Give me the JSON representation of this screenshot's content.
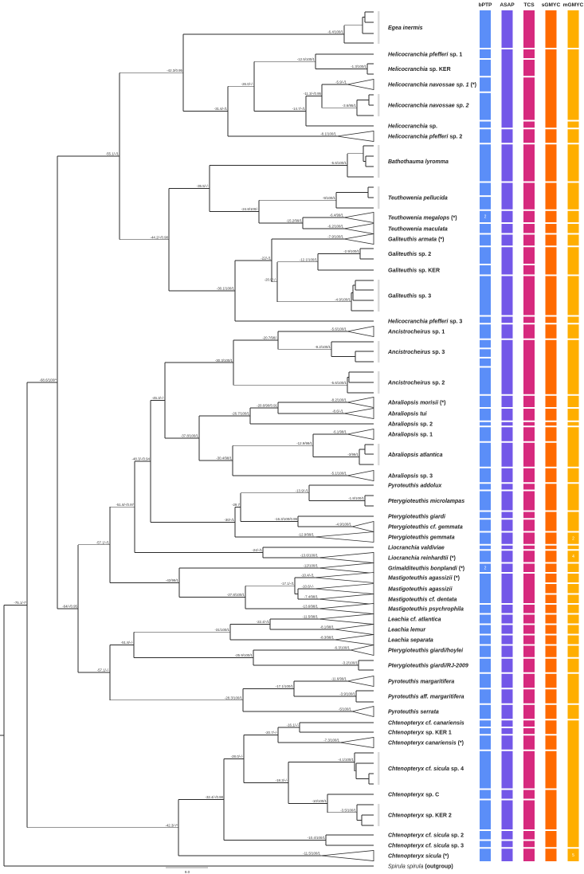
{
  "methods": [
    {
      "name": "bPTP",
      "color": "#5B8EF8"
    },
    {
      "name": "ASAP",
      "color": "#7357E8"
    },
    {
      "name": "TCS",
      "color": "#D62A7E"
    },
    {
      "name": "sGMYC",
      "color": "#FF6A00"
    },
    {
      "name": "mGMYC",
      "color": "#FFAE00"
    }
  ],
  "taxa": [
    {
      "italic": "Egea inermis",
      "plain": ""
    },
    {
      "italic": "Helicocranchia pfefferi",
      "plain": "sp. 1"
    },
    {
      "italic": "Helicocranchia",
      "plain": "sp. KER"
    },
    {
      "italic": "Helicocranchia navossae sp. 1",
      "plain": "(*)"
    },
    {
      "italic": "Helicocranchia navossae sp. 2",
      "plain": ""
    },
    {
      "italic": "Helicocranchia",
      "plain": "sp."
    },
    {
      "italic": "Helicocranchia pfefferi",
      "plain": "sp. 2"
    },
    {
      "italic": "Bathothauma lyromma",
      "plain": ""
    },
    {
      "italic": "Teuthowenia pellucida",
      "plain": ""
    },
    {
      "italic": "Teuthowenia megalops",
      "plain": "(*)"
    },
    {
      "italic": "Teuthowenia maculata",
      "plain": ""
    },
    {
      "italic": "Galiteuthis armata",
      "plain": "(*)"
    },
    {
      "italic": "Galiteuthis",
      "plain": "sp. 2"
    },
    {
      "italic": "Galiteuthis",
      "plain": "sp. KER"
    },
    {
      "italic": "Galiteuthis",
      "plain": "sp. 3"
    },
    {
      "italic": "Helicocranchia pfefferi",
      "plain": "sp. 3"
    },
    {
      "italic": "Ancistrocheirus",
      "plain": "sp. 1"
    },
    {
      "italic": "Ancistrocheirus",
      "plain": "sp. 3"
    },
    {
      "italic": "Ancistrocheirus",
      "plain": "sp. 2"
    },
    {
      "italic": "Abraliopsis morisii",
      "plain": "(*)"
    },
    {
      "italic": "Abraliopsis tui",
      "plain": ""
    },
    {
      "italic": "Abraliopsis",
      "plain": "sp. 2"
    },
    {
      "italic": "Abraliopsis",
      "plain": "sp. 1"
    },
    {
      "italic": "Abraliopsis atlantica",
      "plain": ""
    },
    {
      "italic": "Abraliopsis",
      "plain": "sp. 3"
    },
    {
      "italic": "Pyroteuthis addolux",
      "plain": ""
    },
    {
      "italic": "Pterygioteuthis microlampas",
      "plain": ""
    },
    {
      "italic": "Pterygioteuthis giardi",
      "plain": ""
    },
    {
      "italic": "Pterygioteuthis cf. gemmata",
      "plain": ""
    },
    {
      "italic": "Pterygioteuthis gemmata",
      "plain": ""
    },
    {
      "italic": "Liocranchia valdiviae",
      "plain": ""
    },
    {
      "italic": "Liocranchia reinhardtii",
      "plain": "(*)"
    },
    {
      "italic": "Grimalditeuthis bonplandi",
      "plain": "(*)"
    },
    {
      "italic": "Mastigoteuthis agassizii",
      "plain": "(*)"
    },
    {
      "italic": "Mastigoteuthis agassizii",
      "plain": ""
    },
    {
      "italic": "Mastigoteuthis cf. dentata",
      "plain": ""
    },
    {
      "italic": "Mastigoteuthis psychrophila",
      "plain": ""
    },
    {
      "italic": "Leachia cf. atlantica",
      "plain": ""
    },
    {
      "italic": "Leachia lemur",
      "plain": ""
    },
    {
      "italic": "Leachia separata",
      "plain": ""
    },
    {
      "italic": "Pterygioteuthis giardi/hoylei",
      "plain": ""
    },
    {
      "italic": "Pterygioteuthis giardi/RJ-2009",
      "plain": ""
    },
    {
      "italic": "Pyroteuthis margaritifera",
      "plain": ""
    },
    {
      "italic": "Pyroteuthis aff. margaritifera",
      "plain": ""
    },
    {
      "italic": "Pyroteuthis serrata",
      "plain": ""
    },
    {
      "italic": "Chtenopteryx cf. canariensis",
      "plain": ""
    },
    {
      "italic": "Chtenopteryx",
      "plain": "sp. KER 1"
    },
    {
      "italic": "Chtenopteryx canariensis",
      "plain": "(*)"
    },
    {
      "italic": "Chtenopteryx cf. sicula",
      "plain": "sp. 4"
    },
    {
      "italic": "Chtenopteryx",
      "plain": "sp. C"
    },
    {
      "italic": "Chtenopteryx",
      "plain": "sp. KER 2"
    },
    {
      "italic": "Chtenopteryx cf. sicula",
      "plain": "sp. 2"
    },
    {
      "italic": "Chtenopteryx cf. sicula",
      "plain": "sp. 3"
    },
    {
      "italic": "Chtenopteryx sicula",
      "plain": "(*)"
    }
  ],
  "outgroup": {
    "italic": "Spirula spirula",
    "plain": "(outgroup)"
  },
  "delimitation_groups": {
    "bPTP": [
      [
        0,
        0
      ],
      [
        1,
        1
      ],
      [
        2,
        2
      ],
      [
        3,
        3
      ],
      [
        4,
        4
      ],
      [
        5,
        5
      ],
      [
        6,
        6
      ],
      [
        7,
        7
      ],
      [
        8,
        8,
        2
      ],
      [
        9,
        9,
        1,
        "2"
      ],
      [
        10,
        10
      ],
      [
        11,
        11
      ],
      [
        12,
        12
      ],
      [
        13,
        13
      ],
      [
        14,
        14
      ],
      [
        15,
        15
      ],
      [
        16,
        16
      ],
      [
        17,
        17,
        3
      ],
      [
        18,
        18
      ],
      [
        19,
        19
      ],
      [
        20,
        20
      ],
      [
        21,
        21
      ],
      [
        22,
        22
      ],
      [
        23,
        23
      ],
      [
        24,
        24
      ],
      [
        25,
        25
      ],
      [
        26,
        26
      ],
      [
        27,
        27
      ],
      [
        28,
        28
      ],
      [
        29,
        29
      ],
      [
        30,
        30
      ],
      [
        31,
        31
      ],
      [
        32,
        32,
        1,
        "2"
      ],
      [
        33,
        35
      ],
      [
        36,
        36
      ],
      [
        37,
        37
      ],
      [
        38,
        38
      ],
      [
        39,
        39
      ],
      [
        40,
        40
      ],
      [
        41,
        41
      ],
      [
        42,
        42
      ],
      [
        43,
        43
      ],
      [
        44,
        44
      ],
      [
        45,
        45
      ],
      [
        46,
        46
      ],
      [
        47,
        47
      ],
      [
        48,
        48
      ],
      [
        49,
        49
      ],
      [
        50,
        50
      ],
      [
        51,
        51
      ],
      [
        52,
        52
      ],
      [
        53,
        53
      ]
    ],
    "ASAP": [
      [
        0,
        0
      ],
      [
        1,
        5
      ],
      [
        6,
        6
      ],
      [
        7,
        7
      ],
      [
        8,
        8
      ],
      [
        9,
        9
      ],
      [
        10,
        10
      ],
      [
        11,
        11
      ],
      [
        12,
        13
      ],
      [
        14,
        14
      ],
      [
        15,
        15
      ],
      [
        16,
        16
      ],
      [
        17,
        18
      ],
      [
        19,
        19
      ],
      [
        20,
        20
      ],
      [
        21,
        21
      ],
      [
        22,
        22
      ],
      [
        23,
        23
      ],
      [
        24,
        24
      ],
      [
        25,
        25
      ],
      [
        26,
        26
      ],
      [
        27,
        27
      ],
      [
        28,
        28
      ],
      [
        29,
        29
      ],
      [
        30,
        30
      ],
      [
        31,
        31
      ],
      [
        32,
        32
      ],
      [
        33,
        35
      ],
      [
        36,
        36
      ],
      [
        37,
        37
      ],
      [
        38,
        38
      ],
      [
        39,
        39
      ],
      [
        40,
        40
      ],
      [
        41,
        41
      ],
      [
        42,
        42
      ],
      [
        43,
        43
      ],
      [
        44,
        44
      ],
      [
        45,
        45
      ],
      [
        46,
        46
      ],
      [
        47,
        47
      ],
      [
        48,
        48
      ],
      [
        49,
        49
      ],
      [
        50,
        50
      ],
      [
        51,
        51
      ],
      [
        52,
        52
      ],
      [
        53,
        53
      ]
    ],
    "TCS": [
      [
        0,
        0
      ],
      [
        1,
        1
      ],
      [
        2,
        2
      ],
      [
        3,
        4
      ],
      [
        5,
        5
      ],
      [
        6,
        6
      ],
      [
        7,
        7
      ],
      [
        8,
        8
      ],
      [
        9,
        9
      ],
      [
        10,
        10
      ],
      [
        11,
        11
      ],
      [
        12,
        12
      ],
      [
        13,
        13
      ],
      [
        14,
        14
      ],
      [
        15,
        15
      ],
      [
        16,
        16
      ],
      [
        17,
        18
      ],
      [
        19,
        19
      ],
      [
        20,
        20
      ],
      [
        21,
        21
      ],
      [
        22,
        22
      ],
      [
        23,
        23
      ],
      [
        24,
        24
      ],
      [
        25,
        25
      ],
      [
        26,
        26
      ],
      [
        27,
        27
      ],
      [
        28,
        28
      ],
      [
        29,
        29
      ],
      [
        30,
        30
      ],
      [
        31,
        31
      ],
      [
        32,
        32
      ],
      [
        33,
        35
      ],
      [
        36,
        36
      ],
      [
        37,
        37
      ],
      [
        38,
        38
      ],
      [
        39,
        39
      ],
      [
        40,
        40
      ],
      [
        41,
        41
      ],
      [
        42,
        42
      ],
      [
        43,
        43
      ],
      [
        44,
        44
      ],
      [
        45,
        45
      ],
      [
        46,
        46
      ],
      [
        47,
        47
      ],
      [
        48,
        48
      ],
      [
        49,
        49
      ],
      [
        50,
        50
      ],
      [
        51,
        51
      ],
      [
        52,
        52
      ],
      [
        53,
        53
      ]
    ],
    "sGMYC": [
      [
        0,
        0
      ],
      [
        1,
        5
      ],
      [
        6,
        6
      ],
      [
        7,
        7
      ],
      [
        8,
        8
      ],
      [
        9,
        9
      ],
      [
        10,
        10
      ],
      [
        11,
        11
      ],
      [
        12,
        13
      ],
      [
        14,
        14
      ],
      [
        15,
        15
      ],
      [
        16,
        16
      ],
      [
        17,
        18
      ],
      [
        19,
        19
      ],
      [
        20,
        20
      ],
      [
        21,
        21
      ],
      [
        22,
        22
      ],
      [
        23,
        23
      ],
      [
        24,
        24
      ],
      [
        25,
        26
      ],
      [
        27,
        28
      ],
      [
        29,
        29
      ],
      [
        30,
        30
      ],
      [
        31,
        31
      ],
      [
        32,
        32
      ],
      [
        33,
        33
      ],
      [
        34,
        34
      ],
      [
        35,
        35
      ],
      [
        36,
        36
      ],
      [
        37,
        37
      ],
      [
        38,
        38
      ],
      [
        39,
        39
      ],
      [
        40,
        40
      ],
      [
        41,
        41
      ],
      [
        42,
        42
      ],
      [
        43,
        43
      ],
      [
        44,
        44
      ],
      [
        45,
        46
      ],
      [
        47,
        47
      ],
      [
        48,
        48
      ],
      [
        49,
        50
      ],
      [
        51,
        52
      ],
      [
        53,
        53
      ]
    ],
    "mGMYC": [
      [
        0,
        0
      ],
      [
        1,
        4
      ],
      [
        5,
        5
      ],
      [
        6,
        6
      ],
      [
        7,
        7
      ],
      [
        8,
        8
      ],
      [
        9,
        9
      ],
      [
        10,
        10
      ],
      [
        11,
        11
      ],
      [
        12,
        13
      ],
      [
        14,
        14
      ],
      [
        15,
        15
      ],
      [
        16,
        16
      ],
      [
        17,
        18
      ],
      [
        19,
        19
      ],
      [
        20,
        20
      ],
      [
        21,
        21
      ],
      [
        22,
        23
      ],
      [
        24,
        24
      ],
      [
        25,
        26
      ],
      [
        27,
        28
      ],
      [
        29,
        29,
        1,
        "2"
      ],
      [
        30,
        30
      ],
      [
        31,
        31,
        1,
        "4"
      ],
      [
        32,
        32
      ],
      [
        33,
        33
      ],
      [
        34,
        34
      ],
      [
        35,
        35
      ],
      [
        36,
        36
      ],
      [
        37,
        37
      ],
      [
        38,
        38
      ],
      [
        39,
        39
      ],
      [
        40,
        40
      ],
      [
        41,
        41
      ],
      [
        42,
        43
      ],
      [
        44,
        44
      ],
      [
        45,
        52
      ],
      [
        53,
        53,
        1,
        "5"
      ]
    ]
  },
  "tree": {
    "node_labels": {
      "n1": "-75.1/-/*",
      "n2": "-68.6/100/*",
      "n3": "-55.1/-/1",
      "n4": "-42.3/0.95",
      "egea": "-6.4/100/1",
      "n5": "-31.6/-/1",
      "n5b": "-8.1/100/1",
      "n6": "-26.0/-/-",
      "n7": "-12.5/100/1",
      "n8": "-1.3/100/1",
      "n9": "-14.7/-/1",
      "n10": "-11.3/-/0.95",
      "n10b": "-5.9/-/1",
      "n11": "-3.6/95/1",
      "n12": "-44.2/-/0.98",
      "n13": "-35.5/-/-",
      "n14": "-5.6/100/1",
      "n15": "-24.8/100/-",
      "n16": "-9/100/1",
      "n17": "-15.2/99/1",
      "n18": "-6.4/99/1",
      "n19": "-6.2/100/1",
      "n20": "-30.1/100/1",
      "n21": "-22/-/1",
      "n22": "-7.9/100/1",
      "n23": "-20.9/-/-",
      "n24": "-12.1/100/1",
      "n25": "-2.9/100/1",
      "n26": "-4.9/100/1",
      "n27": "-64/-/0.95",
      "n28": "-57.1/-/1",
      "n29": "-51.8/-/0.97",
      "n30": "-48.3/-/0.94",
      "n31": "-45.3/-/-",
      "n32": "-30.3/100/1",
      "n33": "-20.7/98/-",
      "n34": "-5.6/100/1",
      "n35": "-9.2/100/1",
      "n36": "-5.6/100/1",
      "n37": "-37.8/100/1",
      "n38": "-26.7/100/1",
      "n39": "-20.6/90/0.91",
      "n40": "-8.2/100/1",
      "n41": "-8.6/-/1",
      "n42": "-30.4/98/1",
      "n43": "-12.9/99/1",
      "n44": "-6.1/98/1",
      "n45": "-3/99/1",
      "n46": "-5.1/100/1",
      "n47": "-30/-/1",
      "n48": "-29.7",
      "n49": "-13.9/-/1",
      "n50": "-1.8/100/1",
      "n51": "-16.3/100/0.99",
      "n52": "-4.9/100/1",
      "n53": "-12.9/99/1",
      "n54": "-24/-/1",
      "n55": "-13.6/100/1",
      "n56": "-42/99/1",
      "n57": "-12/100/1",
      "n58": "-27.8/100/1",
      "n59": "-17.1/-/1",
      "n60": "-10.4/-/1",
      "n61": "-10.6/-/-",
      "n62": "-7.4/98/1",
      "n63": "-13.6/98/1",
      "n64": "-57.1/-/-",
      "n65": "-51.8/-/-",
      "n66": "-31/100/1",
      "n67": "-22.4/-/1",
      "n68": "-11.5/98/1",
      "n69": "-8.1/98/1",
      "n70": "-8.3/98/1",
      "n71": "-25.9/100/1",
      "n72": "-6.3/100/1",
      "n73": "-3.2/100/1",
      "n74": "-28.3/100/1",
      "n75": "-17.1/100/1",
      "n76": "-11.6/99/1",
      "n77": "-3.9/100/1",
      "n78": "-5/100/1",
      "n79": "-42.3/-/*",
      "n80": "-32.4/-/0.98",
      "n81": "-28.0/-/-",
      "n82": "-20.7/-/-",
      "n83": "-16.1/-/-",
      "n84": "-7.3/100/1",
      "n85": "-18.3/-/-",
      "n86": "-4.1/100/1",
      "n87": "-10/100/1",
      "n88": "-3.5/100/1",
      "n89": "-10.4/100/1",
      "n90": "-11.5/100/1"
    },
    "scale_bar_label": "9.0"
  }
}
